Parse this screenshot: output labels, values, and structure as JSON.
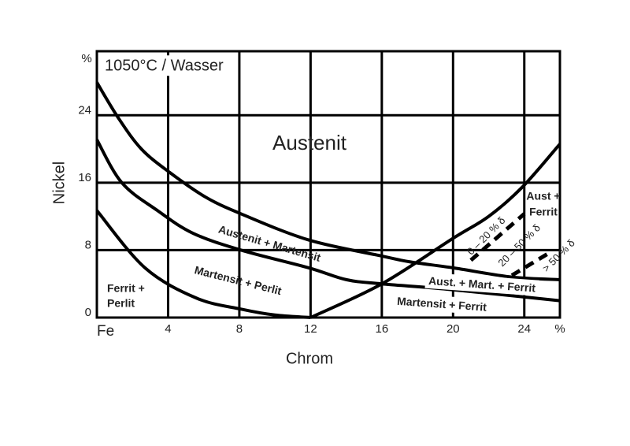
{
  "chart_data": {
    "type": "line",
    "title": "1050°C / Wasser",
    "x_label": "Chrom",
    "y_label": "Nickel",
    "y_unit": "%",
    "xlim": [
      0,
      26
    ],
    "ylim": [
      0,
      31.6
    ],
    "xticks": [
      {
        "value": 0,
        "label": "Fe"
      },
      4,
      8,
      12,
      16,
      20,
      24,
      {
        "value": 26,
        "label": "%"
      }
    ],
    "yticks": [
      0,
      8,
      16,
      24
    ],
    "grid": true,
    "series": [
      {
        "color": "#000000",
        "x": [
          0,
          1.2,
          2.5,
          4.1,
          6.1,
          8.1,
          11.9,
          16,
          17.6,
          20,
          23.3,
          26
        ],
        "values": [
          27.9,
          23.7,
          20,
          17.2,
          14.3,
          12.3,
          9.2,
          7.3,
          6.6,
          5.9,
          4.8,
          4.5
        ]
      },
      {
        "color": "#000000",
        "x": [
          0,
          1.4,
          3.4,
          5.4,
          8.1,
          11.9,
          14,
          16,
          20,
          26
        ],
        "values": [
          21.1,
          16,
          12.7,
          10,
          8,
          5.9,
          4.5,
          4,
          3.3,
          2
        ]
      },
      {
        "color": "#000000",
        "x": [
          0,
          2.7,
          5.6,
          8.1,
          10,
          12
        ],
        "values": [
          12.7,
          5.9,
          2.3,
          1,
          0.3,
          0
        ]
      },
      {
        "color": "#000000",
        "x": [
          12,
          16,
          20,
          22,
          23.9,
          26
        ],
        "values": [
          0,
          4,
          9.4,
          12,
          15.5,
          20.6
        ]
      },
      {
        "color": "#000000",
        "dashed": true,
        "x": [
          21,
          24
        ],
        "values": [
          6.8,
          12.3
        ]
      },
      {
        "color": "#000000",
        "dashed": true,
        "x": [
          23.3,
          25.5
        ],
        "values": [
          5,
          7.8
        ]
      }
    ],
    "annotations": [
      "Austenit",
      "Austenit + Martensit",
      "Martensit + Perlit",
      "Ferrit +",
      "Perlit",
      "Aust. + Mart. + Ferrit",
      "Martensit + Ferrit",
      "Aust +",
      "Ferrit",
      "0 – 20 % δ",
      "20 – 50 % δ",
      "> 50 % δ"
    ]
  }
}
